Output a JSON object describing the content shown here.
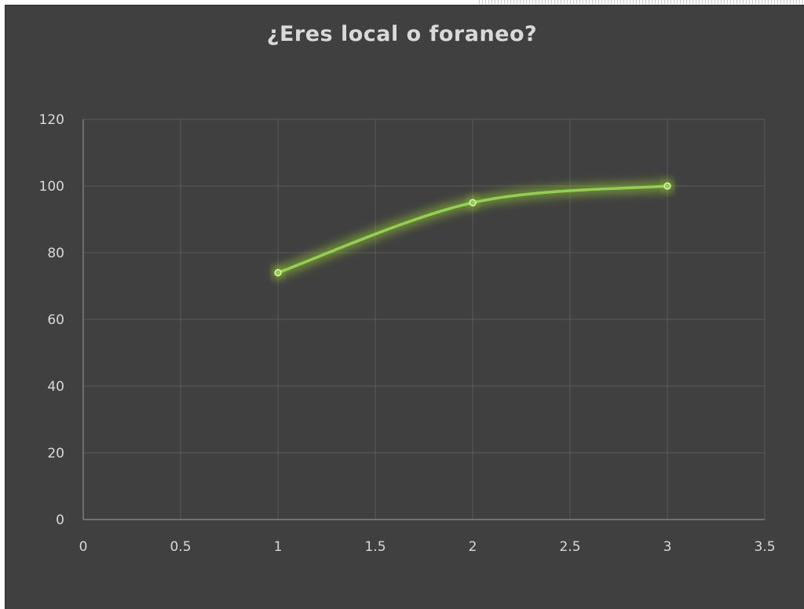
{
  "chart_data": {
    "type": "scatter",
    "title": "¿Eres local o foraneo?",
    "xlabel": "",
    "ylabel": "",
    "x": [
      1,
      2,
      3
    ],
    "series": [
      {
        "values": [
          74,
          95,
          100
        ]
      }
    ],
    "xlim": [
      0,
      3.5
    ],
    "ylim": [
      0,
      120
    ],
    "x_ticks": [
      "0",
      "0.5",
      "1",
      "1.5",
      "2",
      "2.5",
      "3",
      "3.5"
    ],
    "y_ticks": [
      "0",
      "20",
      "40",
      "60",
      "80",
      "100",
      "120"
    ],
    "smooth_line": true,
    "markers": true,
    "grid": true,
    "legend": "none"
  },
  "colors": {
    "background": "#404040",
    "grid": "#5a5a5a",
    "axis": "#8c8c8c",
    "text": "#d9d9d9",
    "series": "#92d050",
    "glow": "#a6e22e"
  }
}
